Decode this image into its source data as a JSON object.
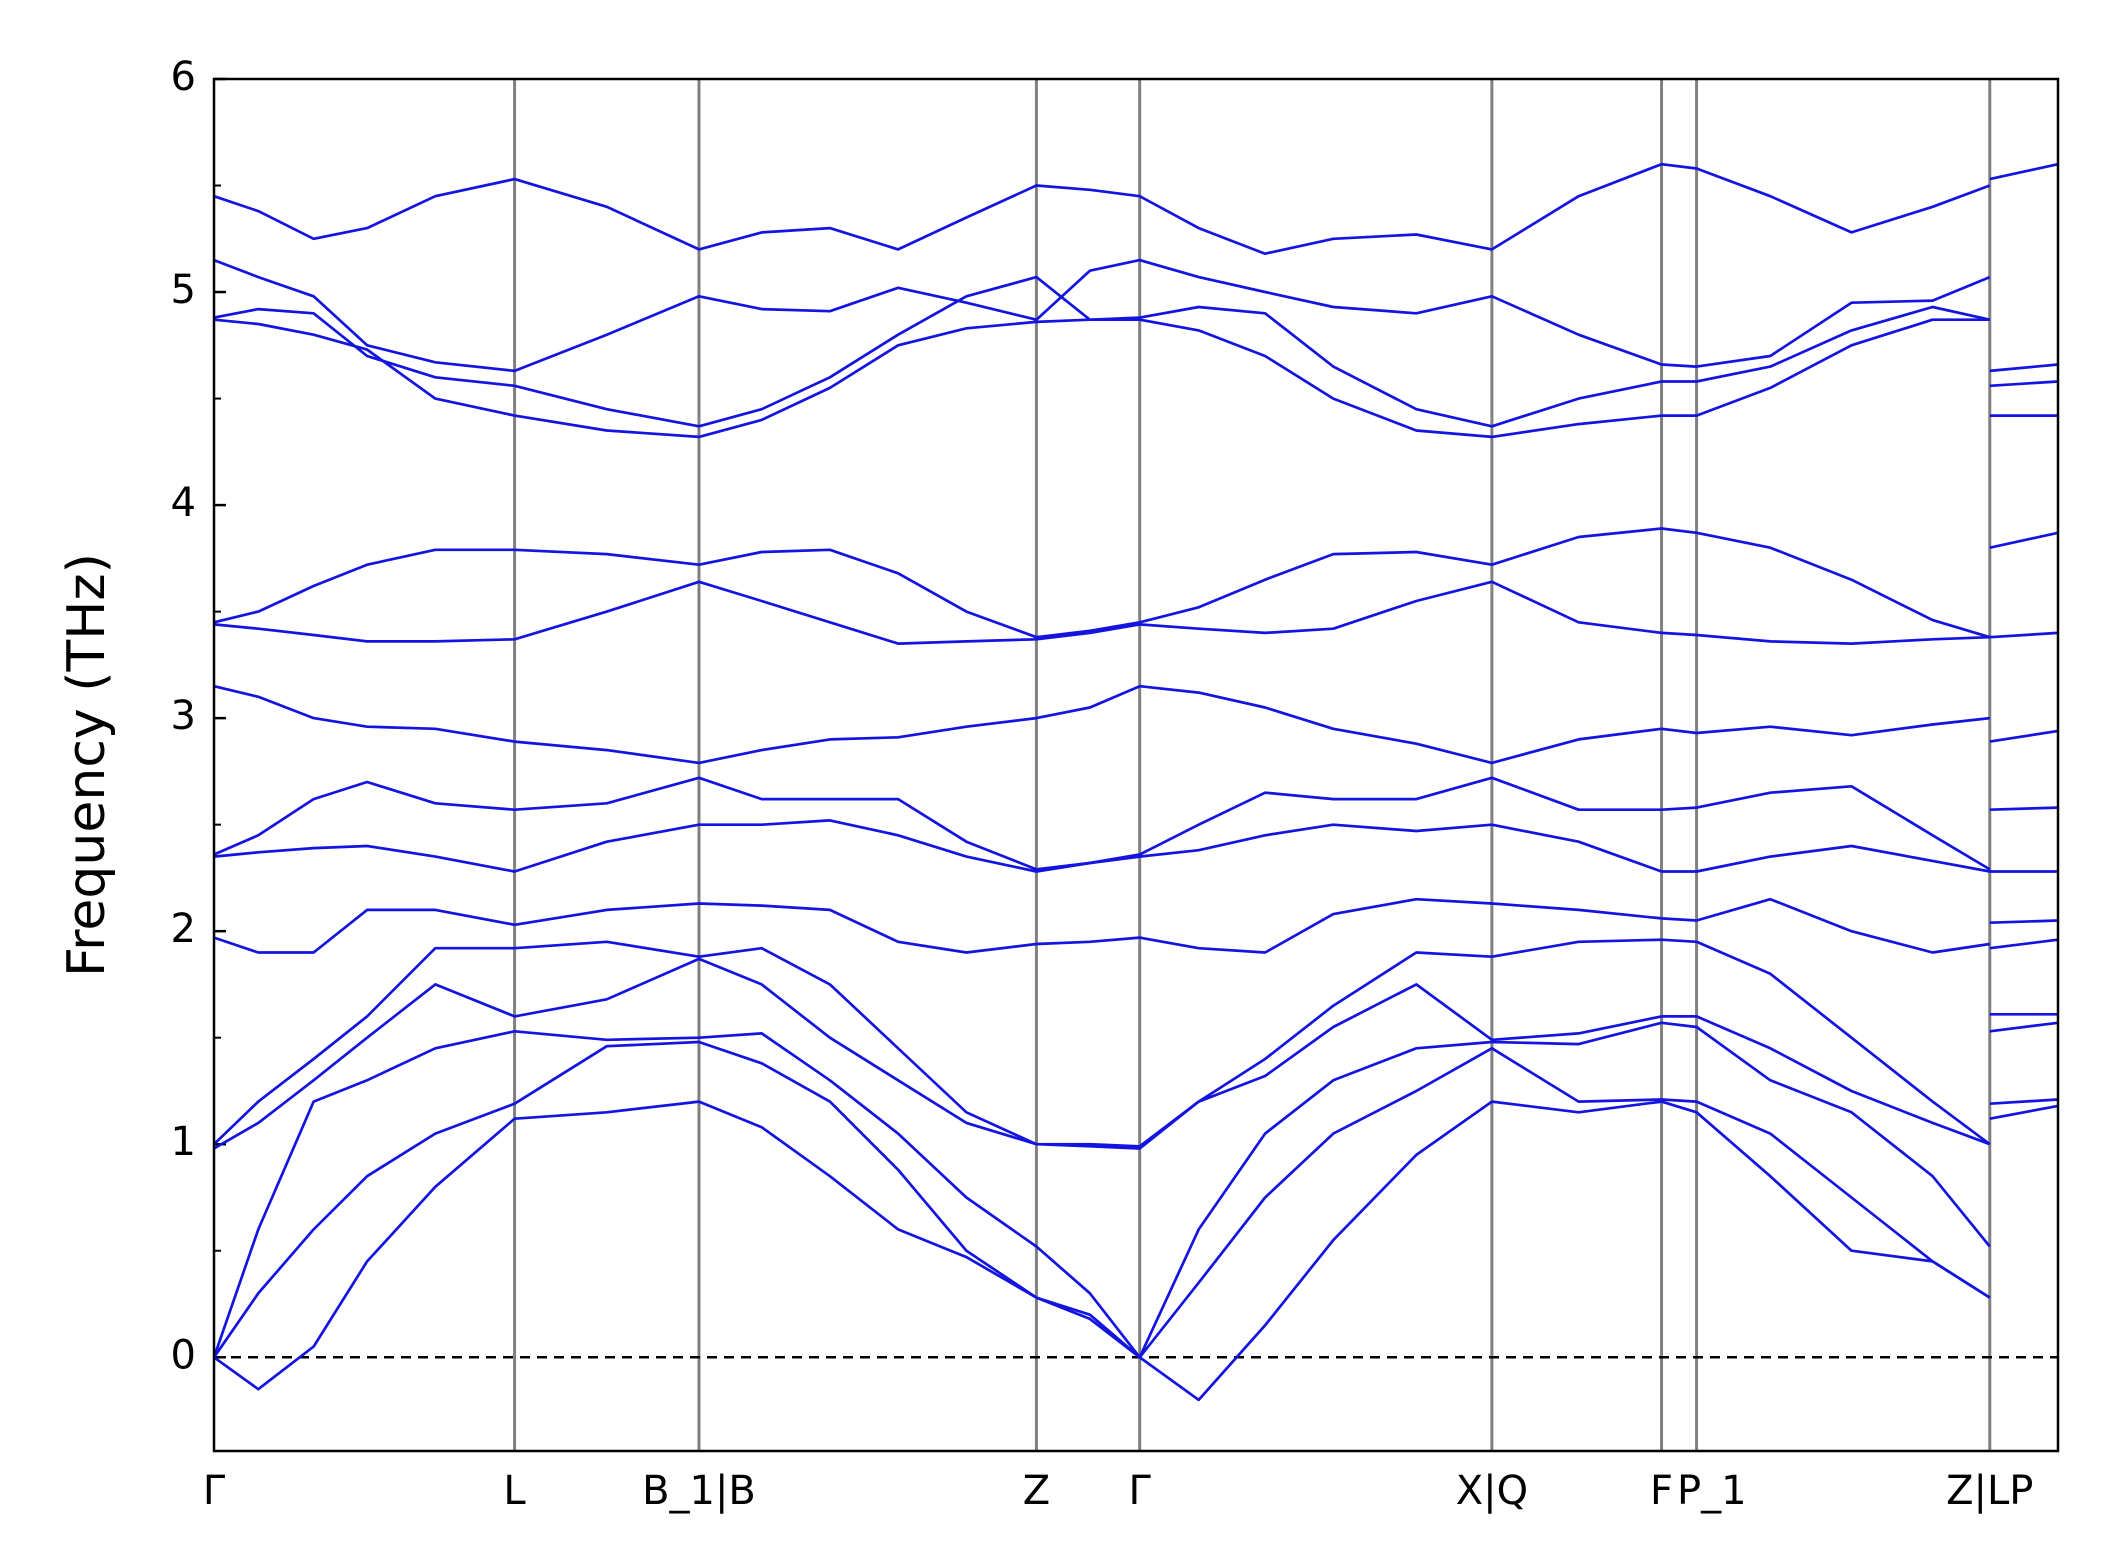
{
  "chart_data": {
    "type": "line",
    "ylabel": "Frequency (THz)",
    "color": "#1414e0",
    "x": [
      0,
      0.024,
      0.054,
      0.083,
      0.12,
      0.163,
      0.213,
      0.263,
      0.297,
      0.334,
      0.371,
      0.408,
      0.446,
      0.475,
      0.502,
      0.534,
      0.57,
      0.607,
      0.652,
      0.693,
      0.74,
      0.785,
      0.804,
      0.844,
      0.888,
      0.932,
      0.963,
      0.963,
      0.963,
      1.0
    ],
    "series": [
      {
        "values": [
          0,
          -0.15,
          0.05,
          0.45,
          0.8,
          1.12,
          1.15,
          1.2,
          1.08,
          0.85,
          0.6,
          0.47,
          0.28,
          0.18,
          0,
          -0.2,
          0.15,
          0.55,
          0.95,
          1.2,
          1.15,
          1.2,
          1.15,
          0.85,
          0.5,
          0.45,
          0.28,
          null,
          1.12,
          1.18
        ]
      },
      {
        "values": [
          0,
          0.3,
          0.6,
          0.85,
          1.05,
          1.19,
          1.46,
          1.48,
          1.38,
          1.2,
          0.88,
          0.5,
          0.28,
          0.2,
          0,
          0.35,
          0.75,
          1.05,
          1.25,
          1.45,
          1.2,
          1.21,
          1.2,
          1.05,
          0.75,
          0.45,
          0.28,
          null,
          1.19,
          1.21
        ]
      },
      {
        "values": [
          0,
          0.6,
          1.2,
          1.3,
          1.45,
          1.53,
          1.49,
          1.5,
          1.52,
          1.3,
          1.05,
          0.75,
          0.52,
          0.3,
          0,
          0.6,
          1.05,
          1.3,
          1.45,
          1.48,
          1.47,
          1.57,
          1.55,
          1.3,
          1.15,
          0.85,
          0.52,
          null,
          1.53,
          1.57
        ]
      },
      {
        "values": [
          0.98,
          1.1,
          1.3,
          1.5,
          1.75,
          1.6,
          1.68,
          1.87,
          1.75,
          1.5,
          1.3,
          1.1,
          1.0,
          0.99,
          0.98,
          1.2,
          1.32,
          1.55,
          1.75,
          1.49,
          1.52,
          1.6,
          1.6,
          1.45,
          1.25,
          1.1,
          1.0,
          null,
          1.61,
          1.61
        ]
      },
      {
        "values": [
          1.0,
          1.2,
          1.4,
          1.6,
          1.92,
          1.92,
          1.95,
          1.88,
          1.92,
          1.75,
          1.45,
          1.15,
          1.0,
          1.0,
          0.99,
          1.2,
          1.4,
          1.65,
          1.9,
          1.88,
          1.95,
          1.96,
          1.95,
          1.8,
          1.5,
          1.2,
          1.0,
          null,
          1.92,
          1.96
        ]
      },
      {
        "values": [
          1.97,
          1.9,
          1.9,
          2.1,
          2.1,
          2.03,
          2.1,
          2.13,
          2.12,
          2.1,
          1.95,
          1.9,
          1.94,
          1.95,
          1.97,
          1.92,
          1.9,
          2.08,
          2.15,
          2.13,
          2.1,
          2.06,
          2.05,
          2.15,
          2.0,
          1.9,
          1.94,
          null,
          2.04,
          2.05
        ]
      },
      {
        "values": [
          2.35,
          2.37,
          2.39,
          2.4,
          2.35,
          2.28,
          2.42,
          2.5,
          2.5,
          2.52,
          2.45,
          2.35,
          2.28,
          2.32,
          2.35,
          2.38,
          2.45,
          2.5,
          2.47,
          2.5,
          2.42,
          2.28,
          2.28,
          2.35,
          2.4,
          2.33,
          2.28,
          null,
          2.28,
          2.28
        ]
      },
      {
        "values": [
          2.36,
          2.45,
          2.62,
          2.7,
          2.6,
          2.57,
          2.6,
          2.72,
          2.62,
          2.62,
          2.62,
          2.42,
          2.29,
          2.32,
          2.36,
          2.5,
          2.65,
          2.62,
          2.62,
          2.72,
          2.57,
          2.57,
          2.58,
          2.65,
          2.68,
          2.45,
          2.29,
          null,
          2.57,
          2.58
        ]
      },
      {
        "values": [
          3.15,
          3.1,
          3.0,
          2.96,
          2.95,
          2.89,
          2.85,
          2.79,
          2.85,
          2.9,
          2.91,
          2.96,
          3.0,
          3.05,
          3.15,
          3.12,
          3.05,
          2.95,
          2.88,
          2.79,
          2.9,
          2.95,
          2.93,
          2.96,
          2.92,
          2.97,
          3.0,
          null,
          2.89,
          2.94
        ]
      },
      {
        "values": [
          3.44,
          3.42,
          3.39,
          3.36,
          3.36,
          3.37,
          3.5,
          3.64,
          3.55,
          3.45,
          3.35,
          3.36,
          3.37,
          3.4,
          3.44,
          3.42,
          3.4,
          3.42,
          3.55,
          3.64,
          3.45,
          3.4,
          3.39,
          3.36,
          3.35,
          3.37,
          3.38,
          null,
          3.38,
          3.4
        ]
      },
      {
        "values": [
          3.45,
          3.5,
          3.62,
          3.72,
          3.79,
          3.79,
          3.77,
          3.72,
          3.78,
          3.79,
          3.68,
          3.5,
          3.38,
          3.41,
          3.45,
          3.52,
          3.65,
          3.77,
          3.78,
          3.72,
          3.85,
          3.89,
          3.87,
          3.8,
          3.65,
          3.46,
          3.38,
          null,
          3.8,
          3.87
        ]
      },
      {
        "values": [
          4.87,
          4.85,
          4.8,
          4.73,
          4.5,
          4.42,
          4.35,
          4.32,
          4.4,
          4.55,
          4.75,
          4.83,
          4.86,
          4.87,
          4.87,
          4.82,
          4.7,
          4.5,
          4.35,
          4.32,
          4.38,
          4.42,
          4.42,
          4.55,
          4.75,
          4.87,
          4.87,
          null,
          4.42,
          4.42
        ]
      },
      {
        "values": [
          4.88,
          4.92,
          4.9,
          4.7,
          4.6,
          4.56,
          4.45,
          4.37,
          4.45,
          4.6,
          4.8,
          4.98,
          5.07,
          4.87,
          4.88,
          4.93,
          4.9,
          4.65,
          4.45,
          4.37,
          4.5,
          4.58,
          4.58,
          4.65,
          4.82,
          4.93,
          4.87,
          null,
          4.56,
          4.58
        ]
      },
      {
        "values": [
          5.15,
          5.07,
          4.98,
          4.75,
          4.67,
          4.63,
          4.8,
          4.98,
          4.92,
          4.91,
          5.02,
          4.95,
          4.87,
          5.1,
          5.15,
          5.07,
          5.0,
          4.93,
          4.9,
          4.98,
          4.8,
          4.66,
          4.65,
          4.7,
          4.95,
          4.96,
          5.07,
          null,
          4.63,
          4.66
        ]
      },
      {
        "values": [
          5.45,
          5.38,
          5.25,
          5.3,
          5.45,
          5.53,
          5.4,
          5.2,
          5.28,
          5.3,
          5.2,
          5.35,
          5.5,
          5.48,
          5.45,
          5.3,
          5.18,
          5.25,
          5.27,
          5.2,
          5.45,
          5.6,
          5.58,
          5.45,
          5.28,
          5.4,
          5.5,
          null,
          5.53,
          5.6
        ]
      }
    ],
    "xlim": [
      0,
      1.0
    ],
    "xticks": [
      {
        "value": 0,
        "label": "Γ"
      },
      {
        "value": 0.163,
        "label": "L"
      },
      {
        "value": 0.263,
        "label": "B_1|B"
      },
      {
        "value": 0.446,
        "label": "Z"
      },
      {
        "value": 0.502,
        "label": "Γ"
      },
      {
        "value": 0.693,
        "label": "X|Q"
      },
      {
        "value": 0.785,
        "label": "F"
      },
      {
        "value": 0.804,
        "label": "P_1"
      },
      {
        "value": 0.963,
        "label": "Z|LP"
      }
    ],
    "ylim": [
      -0.44,
      6
    ],
    "yticks": [
      0,
      1,
      2,
      3,
      4,
      5,
      6
    ],
    "yminorticks": [
      0.5,
      1.5,
      2.5,
      3.5,
      4.5,
      5.5
    ],
    "hline": 0,
    "xgrid": true
  }
}
